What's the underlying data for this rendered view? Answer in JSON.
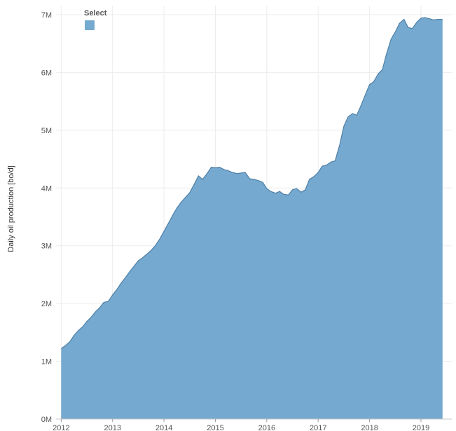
{
  "chart_data": {
    "type": "area",
    "ylabel": "Daily oil production [bo/d]",
    "y_ticks": [
      "0M",
      "1M",
      "2M",
      "3M",
      "4M",
      "5M",
      "6M",
      "7M"
    ],
    "x_ticks": [
      "2012",
      "2013",
      "2014",
      "2015",
      "2016",
      "2017",
      "2018",
      "2019"
    ],
    "ylim": [
      0,
      7200000
    ],
    "xlim": [
      2011.9,
      2019.6
    ],
    "grid": true,
    "legend": {
      "position": "top-left",
      "title": "Select",
      "color": "#76a9cf"
    },
    "colors": {
      "fill": "#76a9cf",
      "line": "#4e7fa6"
    },
    "series": [
      {
        "x": [
          2012.0,
          2012.08,
          2012.17,
          2012.25,
          2012.33,
          2012.42,
          2012.5,
          2012.58,
          2012.67,
          2012.75,
          2012.83,
          2012.92,
          2013.0,
          2013.08,
          2013.17,
          2013.25,
          2013.33,
          2013.42,
          2013.5,
          2013.58,
          2013.67,
          2013.75,
          2013.83,
          2013.92,
          2014.0,
          2014.08,
          2014.17,
          2014.25,
          2014.33,
          2014.42,
          2014.5,
          2014.58,
          2014.67,
          2014.75,
          2014.83,
          2014.92,
          2015.0,
          2015.08,
          2015.17,
          2015.25,
          2015.33,
          2015.42,
          2015.5,
          2015.58,
          2015.67,
          2015.75,
          2015.83,
          2015.92,
          2016.0,
          2016.08,
          2016.17,
          2016.25,
          2016.33,
          2016.42,
          2016.5,
          2016.58,
          2016.67,
          2016.75,
          2016.83,
          2016.92,
          2017.0,
          2017.08,
          2017.17,
          2017.25,
          2017.33,
          2017.42,
          2017.5,
          2017.58,
          2017.67,
          2017.75,
          2017.83,
          2017.92,
          2018.0,
          2018.08,
          2018.17,
          2018.25,
          2018.33,
          2018.42,
          2018.5,
          2018.58,
          2018.67,
          2018.75,
          2018.83,
          2018.92,
          2019.0,
          2019.08,
          2019.17,
          2019.25,
          2019.33,
          2019.42
        ],
        "values": [
          1220000,
          1270000,
          1340000,
          1450000,
          1530000,
          1600000,
          1690000,
          1760000,
          1860000,
          1930000,
          2020000,
          2040000,
          2150000,
          2240000,
          2360000,
          2450000,
          2550000,
          2650000,
          2740000,
          2790000,
          2860000,
          2920000,
          3000000,
          3120000,
          3250000,
          3380000,
          3530000,
          3650000,
          3750000,
          3840000,
          3920000,
          4050000,
          4210000,
          4150000,
          4240000,
          4360000,
          4350000,
          4360000,
          4320000,
          4300000,
          4270000,
          4250000,
          4260000,
          4270000,
          4160000,
          4150000,
          4130000,
          4100000,
          3990000,
          3940000,
          3910000,
          3940000,
          3890000,
          3880000,
          3970000,
          3990000,
          3930000,
          3970000,
          4150000,
          4200000,
          4270000,
          4380000,
          4400000,
          4450000,
          4470000,
          4750000,
          5070000,
          5230000,
          5290000,
          5260000,
          5420000,
          5620000,
          5790000,
          5840000,
          5980000,
          6050000,
          6320000,
          6580000,
          6700000,
          6850000,
          6920000,
          6780000,
          6760000,
          6870000,
          6940000,
          6950000,
          6930000,
          6910000,
          6920000,
          6920000
        ]
      }
    ]
  }
}
